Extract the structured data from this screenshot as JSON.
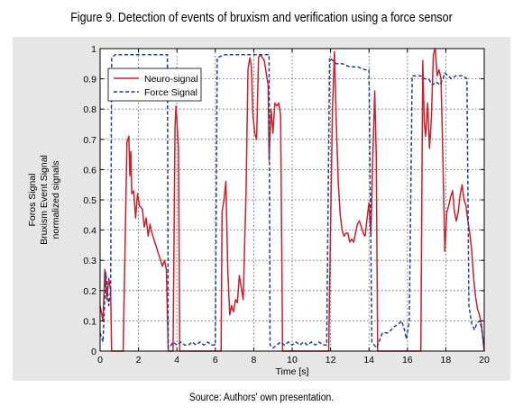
{
  "figure_title": "Figure 9. Detection of events of bruxism and verification using a force sensor",
  "source_note": "Source: Authors' own presentation.",
  "colors": {
    "panel_background": "#e6e6e6",
    "plot_background": "#ffffff",
    "neuro_signal": "#cc1f2a",
    "force_signal": "#1f3f99",
    "grid": "#555555"
  },
  "chart_data": {
    "type": "line",
    "xlabel": "Time [s]",
    "ylabel_lines": [
      "Foros Signal",
      "Bruxism Event Signal",
      "normalized signals"
    ],
    "xlim": [
      0,
      20
    ],
    "ylim": [
      0,
      1
    ],
    "x_ticks": [
      0,
      2,
      4,
      6,
      8,
      10,
      12,
      14,
      16,
      18,
      20
    ],
    "y_ticks": [
      0,
      0.1,
      0.2,
      0.3,
      0.4,
      0.5,
      0.6,
      0.7,
      0.8,
      0.9,
      1
    ],
    "y_tick_labels": [
      "0",
      "0.1",
      "0.2",
      "0.3",
      "0.4",
      "0.5",
      "0.6",
      "0.7",
      "0.8",
      "0.9",
      "1"
    ],
    "grid": "dotted",
    "legend_position": "top-left",
    "series": [
      {
        "name": "Neuro-signal",
        "style": "solid",
        "points": [
          [
            0,
            0.15
          ],
          [
            0.15,
            0.1
          ],
          [
            0.25,
            0.27
          ],
          [
            0.35,
            0.17
          ],
          [
            0.45,
            0.24
          ],
          [
            0.55,
            0.2
          ],
          [
            0.6,
            0.0
          ],
          [
            1.2,
            0.0
          ],
          [
            1.4,
            0.69
          ],
          [
            1.5,
            0.71
          ],
          [
            1.55,
            0.58
          ],
          [
            1.6,
            0.66
          ],
          [
            1.65,
            0.52
          ],
          [
            1.75,
            0.53
          ],
          [
            1.85,
            0.44
          ],
          [
            1.95,
            0.52
          ],
          [
            2.05,
            0.48
          ],
          [
            2.2,
            0.47
          ],
          [
            2.3,
            0.41
          ],
          [
            2.4,
            0.44
          ],
          [
            2.5,
            0.38
          ],
          [
            2.6,
            0.42
          ],
          [
            2.7,
            0.39
          ],
          [
            2.85,
            0.36
          ],
          [
            3.0,
            0.33
          ],
          [
            3.1,
            0.31
          ],
          [
            3.25,
            0.28
          ],
          [
            3.35,
            0.3
          ],
          [
            3.45,
            0.27
          ],
          [
            3.55,
            0.0
          ],
          [
            3.8,
            0.0
          ],
          [
            3.9,
            0.74
          ],
          [
            3.95,
            0.81
          ],
          [
            4.0,
            0.76
          ],
          [
            4.08,
            0.67
          ],
          [
            4.15,
            0.0
          ],
          [
            6.3,
            0.0
          ],
          [
            6.35,
            0.46
          ],
          [
            6.45,
            0.5
          ],
          [
            6.55,
            0.56
          ],
          [
            6.65,
            0.27
          ],
          [
            6.75,
            0.12
          ],
          [
            6.85,
            0.15
          ],
          [
            6.95,
            0.13
          ],
          [
            7.05,
            0.17
          ],
          [
            7.15,
            0.16
          ],
          [
            7.25,
            0.25
          ],
          [
            7.35,
            0.21
          ],
          [
            7.45,
            0.17
          ],
          [
            7.6,
            0.53
          ],
          [
            7.7,
            0.93
          ],
          [
            7.8,
            0.97
          ],
          [
            7.88,
            0.94
          ],
          [
            7.95,
            0.79
          ],
          [
            8.05,
            0.72
          ],
          [
            8.15,
            0.7
          ],
          [
            8.25,
            0.97
          ],
          [
            8.35,
            0.98
          ],
          [
            8.45,
            0.97
          ],
          [
            8.55,
            0.96
          ],
          [
            8.65,
            0.92
          ],
          [
            8.75,
            0.88
          ],
          [
            8.8,
            0.63
          ],
          [
            8.9,
            0.8
          ],
          [
            9.0,
            0.72
          ],
          [
            9.1,
            0.82
          ],
          [
            9.2,
            0.81
          ],
          [
            9.3,
            0.82
          ],
          [
            9.4,
            0.78
          ],
          [
            9.5,
            0.0
          ],
          [
            11.9,
            0.0
          ],
          [
            12.0,
            0.41
          ],
          [
            12.1,
            0.8
          ],
          [
            12.2,
            0.99
          ],
          [
            12.3,
            0.75
          ],
          [
            12.4,
            0.56
          ],
          [
            12.5,
            0.45
          ],
          [
            12.6,
            0.4
          ],
          [
            12.7,
            0.38
          ],
          [
            12.8,
            0.39
          ],
          [
            12.9,
            0.39
          ],
          [
            13.0,
            0.36
          ],
          [
            13.1,
            0.37
          ],
          [
            13.2,
            0.36
          ],
          [
            13.3,
            0.39
          ],
          [
            13.4,
            0.42
          ],
          [
            13.5,
            0.43
          ],
          [
            13.6,
            0.41
          ],
          [
            13.7,
            0.39
          ],
          [
            13.8,
            0.38
          ],
          [
            13.9,
            0.44
          ],
          [
            14.0,
            0.49
          ],
          [
            14.1,
            0.38
          ],
          [
            14.2,
            0.65
          ],
          [
            14.3,
            0.86
          ],
          [
            14.38,
            0.64
          ],
          [
            14.45,
            0.0
          ],
          [
            16.7,
            0.0
          ],
          [
            16.8,
            0.96
          ],
          [
            16.88,
            0.76
          ],
          [
            16.95,
            0.71
          ],
          [
            17.05,
            0.82
          ],
          [
            17.15,
            0.67
          ],
          [
            17.25,
            0.77
          ],
          [
            17.35,
            0.98
          ],
          [
            17.45,
            1.0
          ],
          [
            17.55,
            0.91
          ],
          [
            17.65,
            0.93
          ],
          [
            17.75,
            0.9
          ],
          [
            17.85,
            0.63
          ],
          [
            17.95,
            0.33
          ],
          [
            18.05,
            0.46
          ],
          [
            18.15,
            0.48
          ],
          [
            18.25,
            0.51
          ],
          [
            18.35,
            0.53
          ],
          [
            18.45,
            0.46
          ],
          [
            18.55,
            0.43
          ],
          [
            18.65,
            0.46
          ],
          [
            18.75,
            0.52
          ],
          [
            18.85,
            0.55
          ],
          [
            18.95,
            0.5
          ],
          [
            19.05,
            0.48
          ],
          [
            19.15,
            0.43
          ],
          [
            19.25,
            0.39
          ],
          [
            19.35,
            0.33
          ],
          [
            19.45,
            0.24
          ],
          [
            19.55,
            0.18
          ],
          [
            19.65,
            0.14
          ],
          [
            19.75,
            0.12
          ],
          [
            19.85,
            0.09
          ],
          [
            20,
            0.0
          ]
        ]
      },
      {
        "name": "Force Signal",
        "style": "dashed",
        "points": [
          [
            0,
            0.06
          ],
          [
            0.15,
            0.03
          ],
          [
            0.3,
            0.26
          ],
          [
            0.45,
            0.15
          ],
          [
            0.55,
            0.2
          ],
          [
            0.6,
            0.97
          ],
          [
            0.8,
            0.98
          ],
          [
            1.0,
            0.98
          ],
          [
            1.2,
            0.98
          ],
          [
            1.4,
            0.98
          ],
          [
            1.6,
            0.98
          ],
          [
            1.8,
            0.98
          ],
          [
            2.0,
            0.98
          ],
          [
            2.2,
            0.98
          ],
          [
            2.4,
            0.98
          ],
          [
            2.6,
            0.98
          ],
          [
            2.8,
            0.98
          ],
          [
            3.0,
            0.98
          ],
          [
            3.2,
            0.98
          ],
          [
            3.4,
            0.98
          ],
          [
            3.5,
            0.98
          ],
          [
            3.55,
            0.01
          ],
          [
            3.7,
            0.02
          ],
          [
            3.8,
            0.03
          ],
          [
            4.0,
            0.02
          ],
          [
            4.2,
            0.03
          ],
          [
            4.4,
            0.02
          ],
          [
            4.6,
            0.02
          ],
          [
            4.8,
            0.03
          ],
          [
            5.0,
            0.02
          ],
          [
            5.2,
            0.03
          ],
          [
            5.4,
            0.02
          ],
          [
            5.6,
            0.03
          ],
          [
            5.8,
            0.02
          ],
          [
            6.0,
            0.02
          ],
          [
            6.1,
            0.97
          ],
          [
            6.5,
            0.98
          ],
          [
            7.0,
            0.98
          ],
          [
            7.5,
            0.98
          ],
          [
            8.0,
            0.98
          ],
          [
            8.5,
            0.98
          ],
          [
            8.8,
            0.98
          ],
          [
            8.85,
            0.02
          ],
          [
            9.0,
            0.01
          ],
          [
            9.2,
            0.02
          ],
          [
            9.4,
            0.03
          ],
          [
            9.6,
            0.02
          ],
          [
            9.8,
            0.03
          ],
          [
            10.0,
            0.02
          ],
          [
            10.2,
            0.03
          ],
          [
            10.4,
            0.02
          ],
          [
            10.6,
            0.03
          ],
          [
            10.8,
            0.02
          ],
          [
            11.0,
            0.03
          ],
          [
            11.2,
            0.02
          ],
          [
            11.4,
            0.03
          ],
          [
            11.6,
            0.02
          ],
          [
            11.8,
            0.02
          ],
          [
            11.95,
            0.97
          ],
          [
            12.3,
            0.95
          ],
          [
            12.6,
            0.95
          ],
          [
            13.0,
            0.94
          ],
          [
            13.4,
            0.94
          ],
          [
            13.8,
            0.93
          ],
          [
            14.0,
            0.93
          ],
          [
            14.15,
            0.03
          ],
          [
            14.4,
            0.01
          ],
          [
            14.7,
            0.06
          ],
          [
            15.0,
            0.06
          ],
          [
            15.3,
            0.08
          ],
          [
            15.55,
            0.09
          ],
          [
            15.7,
            0.1
          ],
          [
            15.85,
            0.07
          ],
          [
            15.95,
            0.04
          ],
          [
            16.1,
            0.1
          ],
          [
            16.25,
            0.91
          ],
          [
            16.5,
            0.91
          ],
          [
            16.7,
            0.91
          ],
          [
            16.9,
            0.9
          ],
          [
            17.1,
            0.9
          ],
          [
            17.3,
            0.88
          ],
          [
            17.5,
            0.89
          ],
          [
            17.7,
            0.88
          ],
          [
            17.85,
            0.9
          ],
          [
            17.95,
            0.92
          ],
          [
            18.1,
            0.91
          ],
          [
            18.3,
            0.9
          ],
          [
            18.5,
            0.91
          ],
          [
            18.7,
            0.91
          ],
          [
            18.9,
            0.91
          ],
          [
            19.1,
            0.9
          ],
          [
            19.2,
            0.15
          ],
          [
            19.35,
            0.09
          ],
          [
            19.5,
            0.07
          ],
          [
            19.6,
            0.09
          ],
          [
            19.75,
            0.1
          ],
          [
            19.85,
            0.08
          ],
          [
            20,
            0.01
          ]
        ]
      }
    ]
  }
}
